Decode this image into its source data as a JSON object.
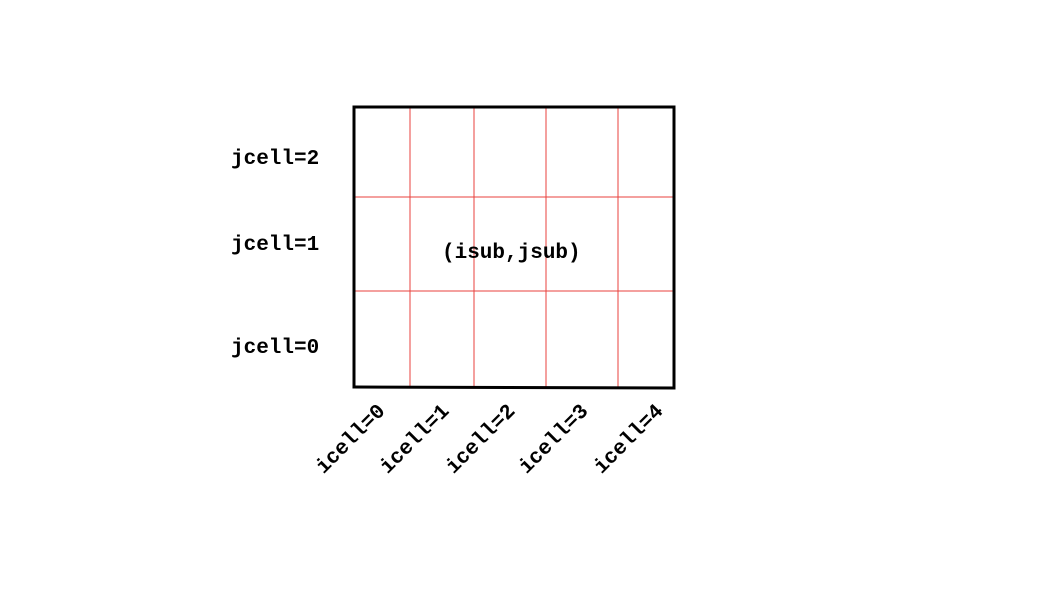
{
  "diagram": {
    "row_labels": [
      "jcell=2",
      "jcell=1",
      "jcell=0"
    ],
    "column_labels": [
      "icell=0",
      "icell=1",
      "icell=2",
      "icell=3",
      "icell=4"
    ],
    "center_label": "(isub,jsub)",
    "colors": {
      "border": "#000000",
      "grid": "#e8403c",
      "text": "#000000",
      "background": "#ffffff"
    }
  }
}
